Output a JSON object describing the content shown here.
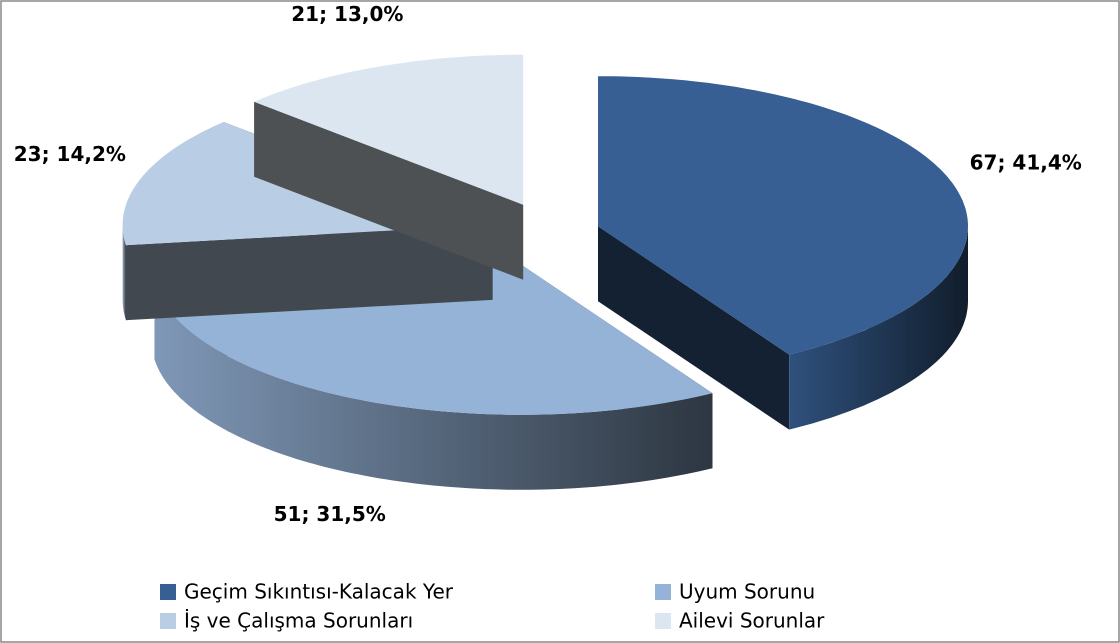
{
  "chart_data": {
    "type": "pie",
    "categories": [
      "Geçim Sıkıntısı-Kalacak Yer",
      "Uyum Sorunu",
      "İş ve Çalışma Sorunları",
      "Ailevi Sorunlar"
    ],
    "values": [
      67,
      51,
      23,
      21
    ],
    "value_labels": [
      "67; 41,4%",
      "51; 31,5%",
      "23; 14,2%",
      "21; 13,0%"
    ],
    "colors": [
      "#375f93",
      "#95b3d7",
      "#b9cde5",
      "#dce6f1"
    ],
    "legend": "bottom"
  }
}
